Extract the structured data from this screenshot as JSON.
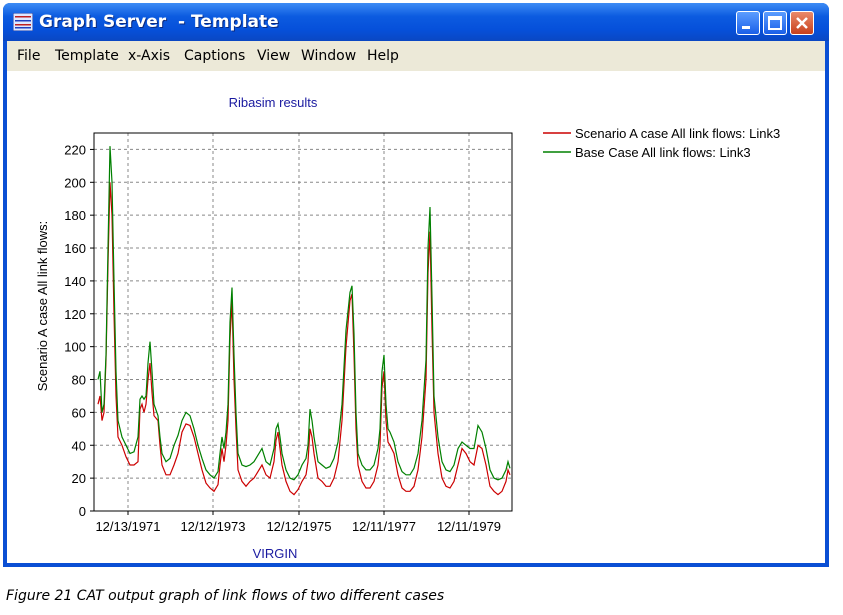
{
  "window": {
    "title": "Graph Server  - Template",
    "icon": "graph-icon",
    "controls": [
      "minimize-icon",
      "maximize-icon",
      "close-icon"
    ]
  },
  "menu": [
    {
      "label": "File"
    },
    {
      "label": "Template"
    },
    {
      "label": "x-Axis"
    },
    {
      "label": "Captions"
    },
    {
      "label": "View"
    },
    {
      "label": "Window"
    },
    {
      "label": "Help"
    }
  ],
  "chart_data": {
    "type": "line",
    "title": "Ribasim results",
    "xlabel": "VIRGIN",
    "ylabel": "Scenario A case All link flows:",
    "ylim": [
      0,
      230
    ],
    "yticks": [
      0,
      20,
      40,
      60,
      80,
      100,
      120,
      140,
      160,
      180,
      200,
      220
    ],
    "xlim": [
      0,
      100
    ],
    "xticks": [
      {
        "x": 10,
        "label": "12/13/1971"
      },
      {
        "x": 30,
        "label": "12/12/1973"
      },
      {
        "x": 50,
        "label": "12/12/1975"
      },
      {
        "x": 70,
        "label": "12/11/1977"
      },
      {
        "x": 90,
        "label": "12/11/1979"
      }
    ],
    "grid": true,
    "legend_position": "top-right",
    "series": [
      {
        "name": "Scenario A case All link flows: Link3",
        "color": "#cc0000",
        "points": [
          [
            0,
            65
          ],
          [
            0.5,
            70
          ],
          [
            1,
            55
          ],
          [
            1.5,
            60
          ],
          [
            2,
            92
          ],
          [
            2.5,
            150
          ],
          [
            3,
            200
          ],
          [
            3.5,
            180
          ],
          [
            4,
            120
          ],
          [
            4.5,
            70
          ],
          [
            5,
            45
          ],
          [
            6,
            40
          ],
          [
            7,
            33
          ],
          [
            8,
            28
          ],
          [
            9,
            28
          ],
          [
            10,
            30
          ],
          [
            10.5,
            62
          ],
          [
            11,
            65
          ],
          [
            11.5,
            60
          ],
          [
            12,
            65
          ],
          [
            12.5,
            80
          ],
          [
            13,
            90
          ],
          [
            13.5,
            72
          ],
          [
            14,
            58
          ],
          [
            15,
            55
          ],
          [
            15.5,
            40
          ],
          [
            16,
            28
          ],
          [
            17,
            22
          ],
          [
            18,
            22
          ],
          [
            19,
            28
          ],
          [
            20,
            35
          ],
          [
            21,
            48
          ],
          [
            22,
            53
          ],
          [
            23,
            52
          ],
          [
            24,
            45
          ],
          [
            25,
            35
          ],
          [
            26,
            25
          ],
          [
            27,
            17
          ],
          [
            28,
            14
          ],
          [
            29,
            12
          ],
          [
            30,
            16
          ],
          [
            30.5,
            28
          ],
          [
            31,
            38
          ],
          [
            31.5,
            30
          ],
          [
            32,
            40
          ],
          [
            32.5,
            55
          ],
          [
            33,
            105
          ],
          [
            33.5,
            128
          ],
          [
            34,
            80
          ],
          [
            34.5,
            50
          ],
          [
            35,
            25
          ],
          [
            36,
            18
          ],
          [
            37,
            15
          ],
          [
            38,
            18
          ],
          [
            39,
            20
          ],
          [
            40,
            24
          ],
          [
            41,
            28
          ],
          [
            42,
            22
          ],
          [
            43,
            20
          ],
          [
            44,
            30
          ],
          [
            44.5,
            43
          ],
          [
            45,
            48
          ],
          [
            45.5,
            38
          ],
          [
            46,
            28
          ],
          [
            47,
            18
          ],
          [
            48,
            12
          ],
          [
            49,
            10
          ],
          [
            50,
            13
          ],
          [
            51,
            18
          ],
          [
            52,
            22
          ],
          [
            52.5,
            30
          ],
          [
            53,
            50
          ],
          [
            53.5,
            45
          ],
          [
            54,
            35
          ],
          [
            55,
            20
          ],
          [
            56,
            18
          ],
          [
            57,
            15
          ],
          [
            58,
            15
          ],
          [
            59,
            20
          ],
          [
            60,
            30
          ],
          [
            61,
            55
          ],
          [
            62,
            100
          ],
          [
            63,
            128
          ],
          [
            63.5,
            132
          ],
          [
            64,
            95
          ],
          [
            64.5,
            50
          ],
          [
            65,
            28
          ],
          [
            66,
            18
          ],
          [
            67,
            14
          ],
          [
            68,
            14
          ],
          [
            69,
            18
          ],
          [
            70,
            28
          ],
          [
            70.5,
            40
          ],
          [
            71,
            75
          ],
          [
            71.5,
            85
          ],
          [
            72,
            55
          ],
          [
            72.5,
            42
          ],
          [
            73,
            40
          ],
          [
            74,
            35
          ],
          [
            75,
            22
          ],
          [
            76,
            14
          ],
          [
            77,
            12
          ],
          [
            78,
            12
          ],
          [
            79,
            15
          ],
          [
            80,
            25
          ],
          [
            81,
            45
          ],
          [
            82,
            80
          ],
          [
            82.5,
            145
          ],
          [
            83,
            170
          ],
          [
            83.5,
            110
          ],
          [
            84,
            60
          ],
          [
            85,
            35
          ],
          [
            86,
            20
          ],
          [
            87,
            15
          ],
          [
            88,
            14
          ],
          [
            89,
            18
          ],
          [
            90,
            28
          ],
          [
            91,
            38
          ],
          [
            92,
            35
          ],
          [
            93,
            30
          ],
          [
            94,
            28
          ],
          [
            95,
            40
          ],
          [
            96,
            38
          ],
          [
            97,
            28
          ],
          [
            98,
            15
          ],
          [
            99,
            12
          ],
          [
            100,
            10
          ],
          [
            101,
            12
          ],
          [
            102,
            18
          ],
          [
            102.5,
            25
          ],
          [
            103,
            22
          ]
        ]
      },
      {
        "name": "Base Case All link flows: Link3",
        "color": "#008000",
        "points": [
          [
            0,
            80
          ],
          [
            0.5,
            85
          ],
          [
            1,
            60
          ],
          [
            1.5,
            65
          ],
          [
            2,
            95
          ],
          [
            2.5,
            160
          ],
          [
            3,
            222
          ],
          [
            3.5,
            200
          ],
          [
            4,
            140
          ],
          [
            4.5,
            85
          ],
          [
            5,
            55
          ],
          [
            6,
            45
          ],
          [
            7,
            40
          ],
          [
            8,
            35
          ],
          [
            9,
            36
          ],
          [
            10,
            45
          ],
          [
            10.5,
            68
          ],
          [
            11,
            70
          ],
          [
            11.5,
            68
          ],
          [
            12,
            70
          ],
          [
            12.5,
            90
          ],
          [
            13,
            103
          ],
          [
            13.5,
            85
          ],
          [
            14,
            65
          ],
          [
            15,
            58
          ],
          [
            15.5,
            45
          ],
          [
            16,
            35
          ],
          [
            17,
            30
          ],
          [
            18,
            32
          ],
          [
            19,
            40
          ],
          [
            20,
            46
          ],
          [
            21,
            55
          ],
          [
            22,
            60
          ],
          [
            23,
            58
          ],
          [
            24,
            50
          ],
          [
            25,
            40
          ],
          [
            26,
            32
          ],
          [
            27,
            25
          ],
          [
            28,
            22
          ],
          [
            29,
            20
          ],
          [
            30,
            24
          ],
          [
            30.5,
            35
          ],
          [
            31,
            45
          ],
          [
            31.5,
            38
          ],
          [
            32,
            48
          ],
          [
            32.5,
            65
          ],
          [
            33,
            115
          ],
          [
            33.5,
            136
          ],
          [
            34,
            95
          ],
          [
            34.5,
            60
          ],
          [
            35,
            35
          ],
          [
            36,
            28
          ],
          [
            37,
            27
          ],
          [
            38,
            28
          ],
          [
            39,
            30
          ],
          [
            40,
            34
          ],
          [
            41,
            38
          ],
          [
            42,
            30
          ],
          [
            43,
            28
          ],
          [
            44,
            38
          ],
          [
            44.5,
            50
          ],
          [
            45,
            53
          ],
          [
            45.5,
            45
          ],
          [
            46,
            35
          ],
          [
            47,
            25
          ],
          [
            48,
            20
          ],
          [
            49,
            19
          ],
          [
            50,
            22
          ],
          [
            51,
            28
          ],
          [
            52,
            32
          ],
          [
            52.5,
            40
          ],
          [
            53,
            62
          ],
          [
            53.5,
            55
          ],
          [
            54,
            45
          ],
          [
            55,
            30
          ],
          [
            56,
            28
          ],
          [
            57,
            26
          ],
          [
            58,
            27
          ],
          [
            59,
            32
          ],
          [
            60,
            42
          ],
          [
            61,
            65
          ],
          [
            62,
            110
          ],
          [
            63,
            133
          ],
          [
            63.5,
            137
          ],
          [
            64,
            108
          ],
          [
            64.5,
            60
          ],
          [
            65,
            35
          ],
          [
            66,
            28
          ],
          [
            67,
            25
          ],
          [
            68,
            25
          ],
          [
            69,
            28
          ],
          [
            70,
            38
          ],
          [
            70.5,
            50
          ],
          [
            71,
            85
          ],
          [
            71.5,
            95
          ],
          [
            72,
            65
          ],
          [
            72.5,
            50
          ],
          [
            73,
            48
          ],
          [
            74,
            42
          ],
          [
            75,
            30
          ],
          [
            76,
            24
          ],
          [
            77,
            22
          ],
          [
            78,
            22
          ],
          [
            79,
            26
          ],
          [
            80,
            35
          ],
          [
            81,
            55
          ],
          [
            82,
            92
          ],
          [
            82.5,
            160
          ],
          [
            83,
            185
          ],
          [
            83.5,
            130
          ],
          [
            84,
            70
          ],
          [
            85,
            45
          ],
          [
            86,
            30
          ],
          [
            87,
            25
          ],
          [
            88,
            24
          ],
          [
            89,
            28
          ],
          [
            90,
            38
          ],
          [
            91,
            42
          ],
          [
            92,
            40
          ],
          [
            93,
            38
          ],
          [
            94,
            38
          ],
          [
            95,
            52
          ],
          [
            96,
            48
          ],
          [
            97,
            38
          ],
          [
            98,
            25
          ],
          [
            99,
            20
          ],
          [
            100,
            19
          ],
          [
            101,
            20
          ],
          [
            102,
            25
          ],
          [
            102.5,
            30
          ],
          [
            103,
            26
          ]
        ]
      }
    ]
  },
  "caption": "Figure 21 CAT output graph of link flows of two different cases"
}
